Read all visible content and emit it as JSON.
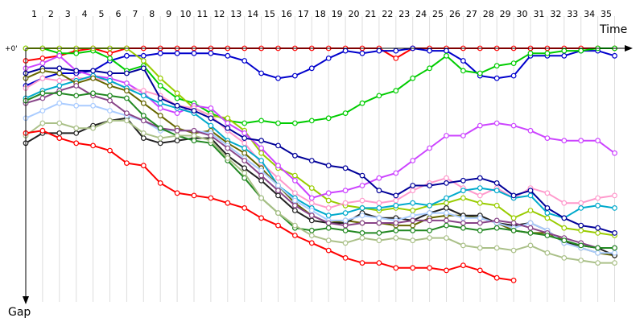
{
  "chart_data": {
    "type": "line",
    "x_axis_label": "Time",
    "y_axis_label": "Gap",
    "zero_label": "+0'",
    "laps": [
      1,
      2,
      3,
      4,
      5,
      6,
      7,
      8,
      9,
      10,
      11,
      12,
      13,
      14,
      15,
      16,
      17,
      18,
      19,
      20,
      21,
      22,
      23,
      24,
      25,
      26,
      27,
      28,
      29,
      30,
      31,
      32,
      33,
      34,
      35
    ],
    "y_range": [
      0,
      100
    ],
    "grid": "vertical lines at each lap",
    "series": [
      {
        "color": "#ff0000",
        "values": [
          5,
          4,
          3,
          1,
          0,
          2,
          0,
          0,
          0,
          0,
          0,
          0,
          0,
          0,
          0,
          0,
          0,
          0,
          0,
          0,
          0,
          0,
          4,
          0,
          0,
          0,
          0,
          0,
          0,
          0,
          0,
          0,
          0,
          0,
          0,
          0
        ]
      },
      {
        "color": "#0000cc",
        "values": [
          15,
          12,
          10,
          10,
          9,
          5,
          3,
          3,
          2,
          2,
          2,
          2,
          3,
          5,
          10,
          12,
          11,
          8,
          4,
          1,
          2,
          1,
          1,
          0,
          1,
          1,
          5,
          11,
          12,
          11,
          3,
          3,
          3,
          1,
          1,
          3
        ]
      },
      {
        "color": "#00cc00",
        "values": [
          0,
          0,
          2,
          2,
          1,
          4,
          9,
          7,
          15,
          20,
          22,
          26,
          29,
          30,
          29,
          30,
          30,
          29,
          28,
          26,
          22,
          19,
          17,
          12,
          8,
          3,
          9,
          10,
          7,
          6,
          2,
          2,
          1,
          1,
          0,
          0
        ]
      },
      {
        "color": "#99cc00",
        "values": [
          0,
          0,
          0,
          0,
          0,
          0,
          0,
          5,
          12,
          18,
          24,
          27,
          28,
          33,
          42,
          48,
          51,
          56,
          61,
          63,
          64,
          65,
          64,
          65,
          63,
          62,
          60,
          62,
          63,
          68,
          65,
          68,
          72,
          73,
          74,
          75
        ]
      },
      {
        "color": "#cc44ff",
        "values": [
          8,
          6,
          3,
          9,
          11,
          12,
          14,
          18,
          24,
          26,
          23,
          24,
          30,
          34,
          40,
          47,
          53,
          60,
          58,
          57,
          55,
          52,
          50,
          45,
          40,
          35,
          35,
          31,
          30,
          31,
          33,
          36,
          37,
          37,
          37,
          42
        ]
      },
      {
        "color": "#ff99cc",
        "values": [
          16,
          12,
          13,
          12,
          12,
          13,
          16,
          17,
          19,
          23,
          24,
          27,
          33,
          38,
          46,
          52,
          58,
          62,
          64,
          62,
          61,
          62,
          61,
          57,
          54,
          52,
          56,
          59,
          56,
          60,
          56,
          58,
          62,
          62,
          60,
          59
        ]
      },
      {
        "color": "#00aacc",
        "values": [
          20,
          17,
          15,
          13,
          11,
          13,
          16,
          19,
          22,
          24,
          26,
          31,
          37,
          40,
          45,
          55,
          60,
          64,
          67,
          66,
          64,
          64,
          63,
          62,
          63,
          60,
          57,
          56,
          57,
          60,
          59,
          66,
          68,
          64,
          63,
          64
        ]
      },
      {
        "color": "#000099",
        "values": [
          10,
          8,
          8,
          9,
          9,
          10,
          10,
          8,
          20,
          23,
          25,
          28,
          32,
          36,
          37,
          39,
          43,
          45,
          47,
          48,
          51,
          57,
          59,
          55,
          55,
          54,
          53,
          52,
          54,
          59,
          57,
          64,
          68,
          71,
          72,
          74
        ]
      },
      {
        "color": "#666600",
        "values": [
          12,
          9,
          10,
          14,
          12,
          15,
          17,
          22,
          27,
          32,
          34,
          33,
          38,
          42,
          48,
          55,
          62,
          67,
          70,
          69,
          70,
          70,
          71,
          71,
          68,
          67,
          67,
          68,
          70,
          73,
          74,
          74,
          77,
          80,
          82,
          83
        ]
      },
      {
        "color": "#222222",
        "values": [
          38,
          34,
          34,
          34,
          31,
          29,
          28,
          36,
          38,
          37,
          36,
          36,
          43,
          48,
          53,
          59,
          65,
          69,
          70,
          70,
          66,
          68,
          68,
          69,
          66,
          64,
          67,
          67,
          70,
          71,
          70,
          73,
          78,
          79,
          80,
          83
        ]
      },
      {
        "color": "#aaccff",
        "values": [
          28,
          25,
          22,
          23,
          23,
          25,
          27,
          29,
          33,
          33,
          33,
          34,
          39,
          44,
          49,
          55,
          61,
          65,
          69,
          69,
          67,
          68,
          69,
          67,
          66,
          66,
          68,
          68,
          70,
          72,
          70,
          73,
          78,
          80,
          82,
          82
        ]
      },
      {
        "color": "#884488",
        "values": [
          22,
          20,
          17,
          15,
          19,
          21,
          26,
          29,
          32,
          33,
          33,
          35,
          40,
          45,
          51,
          57,
          63,
          67,
          70,
          71,
          70,
          70,
          70,
          69,
          69,
          69,
          70,
          70,
          69,
          70,
          72,
          74,
          76,
          78,
          80,
          80
        ]
      },
      {
        "color": "#228822",
        "values": [
          21,
          18,
          18,
          19,
          18,
          19,
          20,
          27,
          32,
          35,
          37,
          38,
          45,
          52,
          60,
          66,
          72,
          73,
          72,
          73,
          74,
          74,
          73,
          73,
          73,
          71,
          72,
          73,
          72,
          73,
          74,
          75,
          77,
          79,
          80,
          80
        ]
      },
      {
        "color": "#aac088",
        "values": [
          35,
          30,
          30,
          32,
          32,
          29,
          29,
          34,
          36,
          35,
          35,
          37,
          44,
          50,
          60,
          66,
          71,
          75,
          77,
          78,
          76,
          77,
          76,
          77,
          76,
          76,
          79,
          80,
          80,
          81,
          79,
          82,
          84,
          85,
          86,
          86
        ]
      },
      {
        "color": "#ff0000",
        "values": [
          34,
          33,
          36,
          38,
          39,
          41,
          46,
          47,
          54,
          58,
          59,
          60,
          62,
          64,
          68,
          71,
          75,
          78,
          81,
          84,
          86,
          86,
          88,
          88,
          88,
          89,
          87,
          89,
          92,
          93
        ]
      }
    ]
  }
}
